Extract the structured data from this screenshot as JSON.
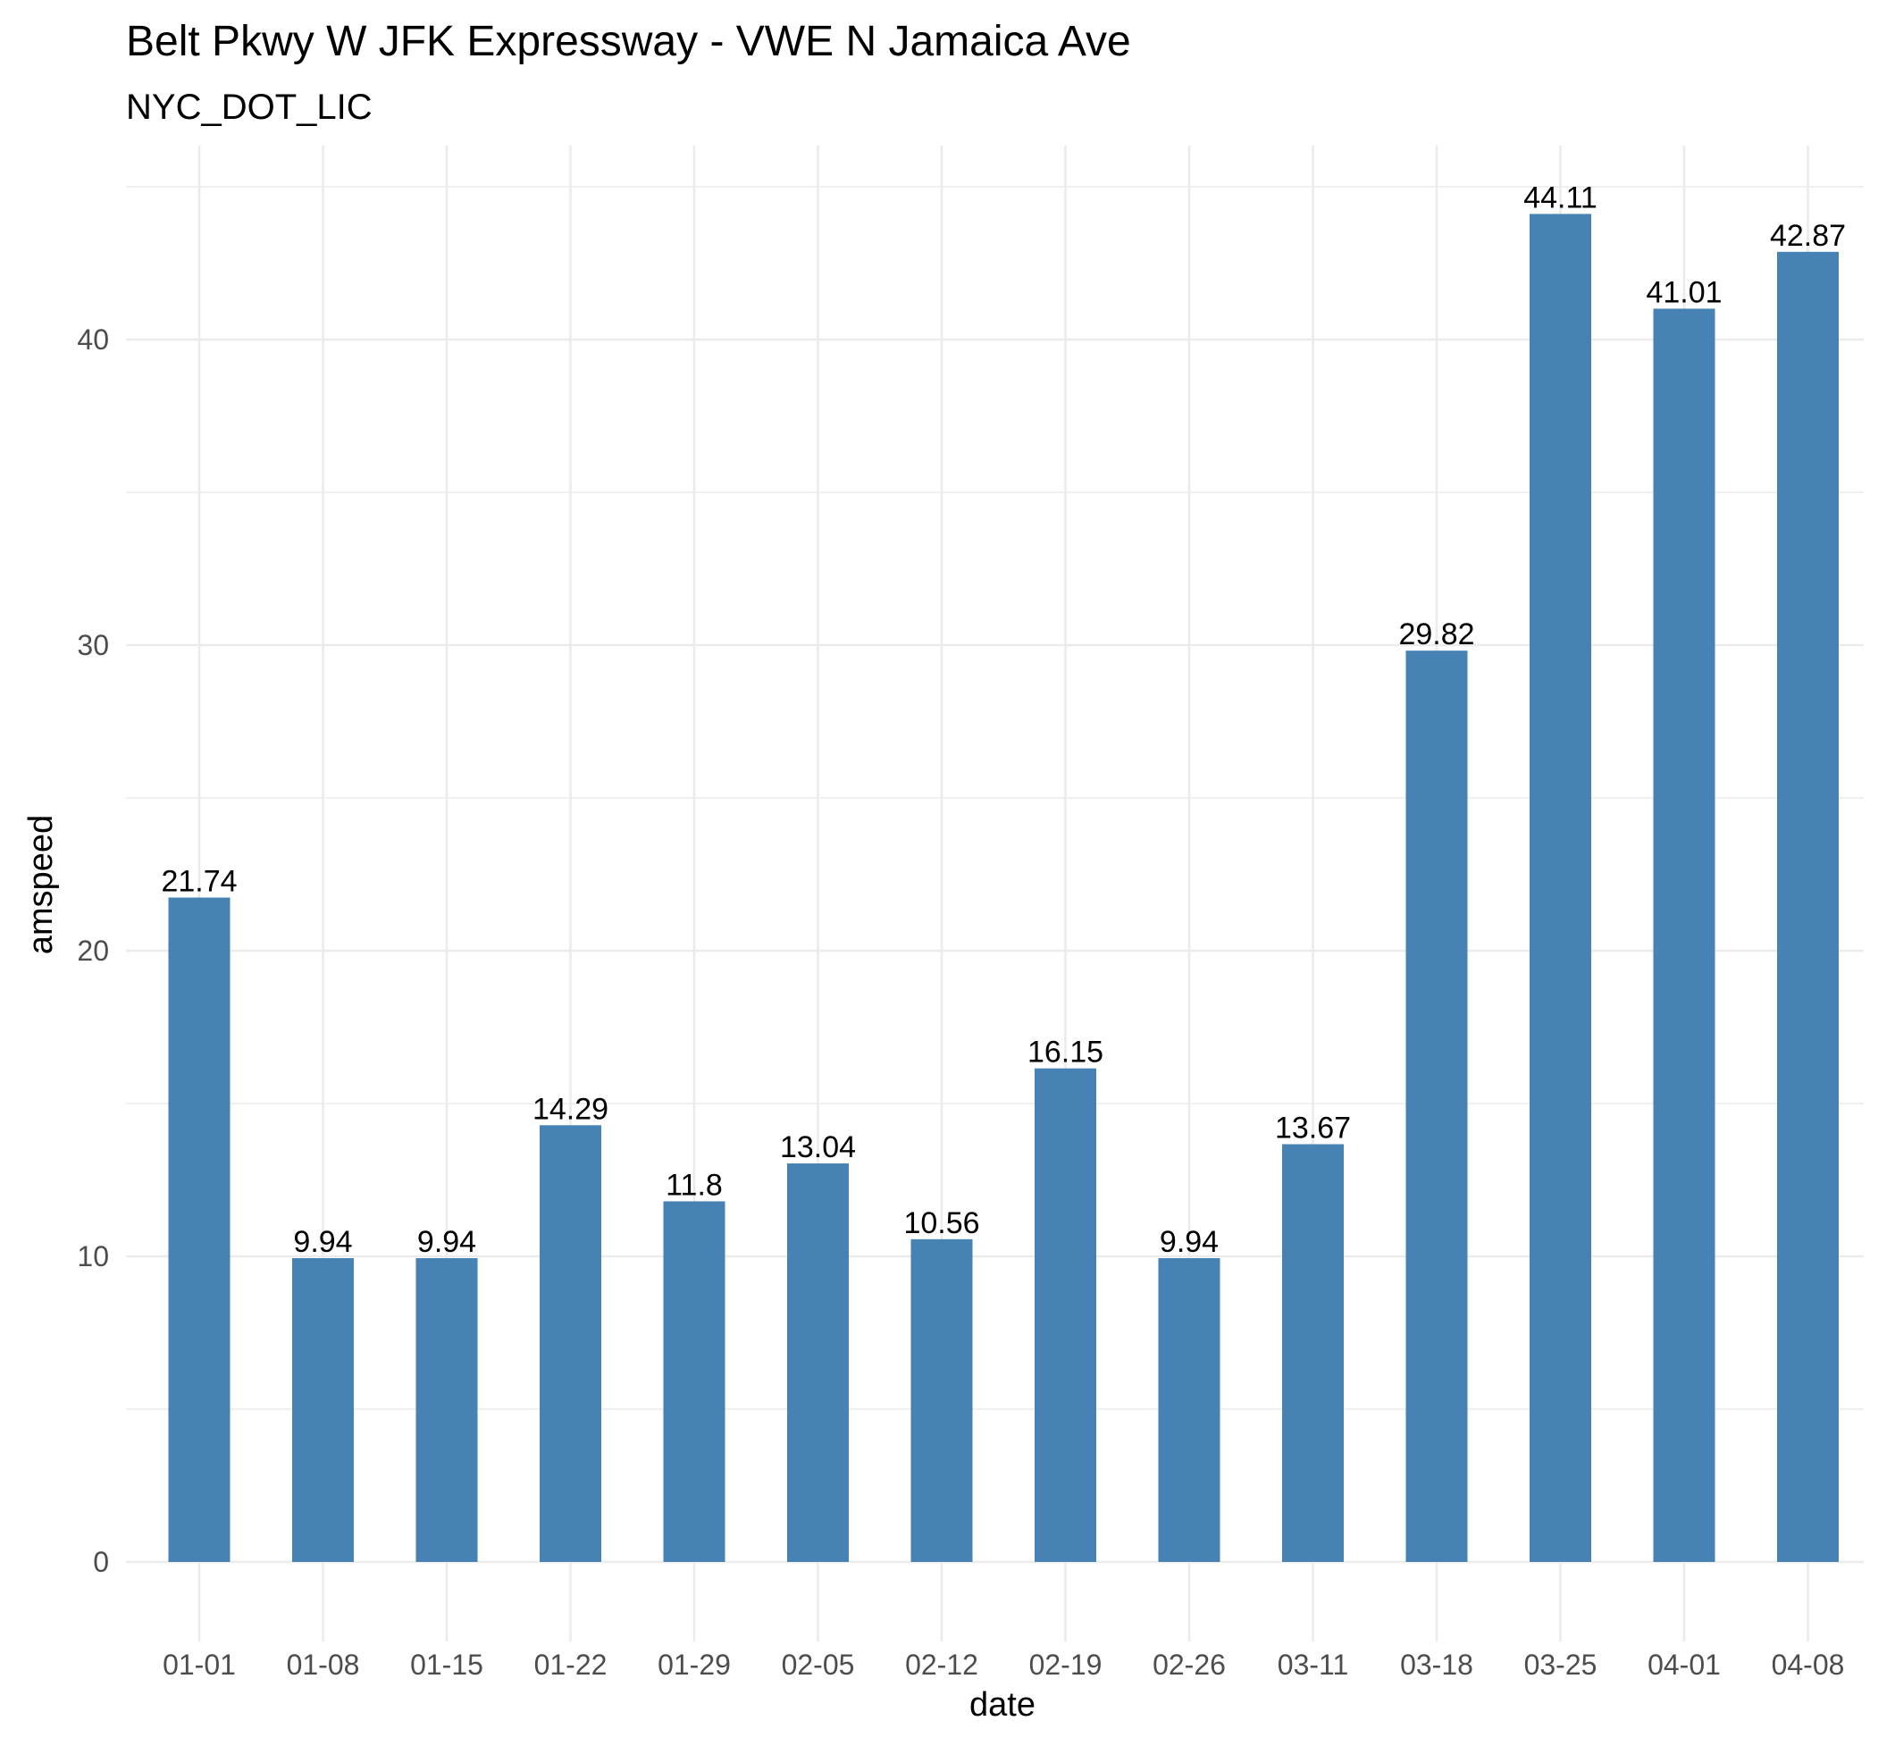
{
  "chart_data": {
    "type": "bar",
    "title": "Belt Pkwy W JFK Expressway - VWE N Jamaica Ave",
    "subtitle": "NYC_DOT_LIC",
    "xlabel": "date",
    "ylabel": "amspeed",
    "categories": [
      "01-01",
      "01-08",
      "01-15",
      "01-22",
      "01-29",
      "02-05",
      "02-12",
      "02-19",
      "02-26",
      "03-11",
      "03-18",
      "03-25",
      "04-01",
      "04-08"
    ],
    "values": [
      21.74,
      9.94,
      9.94,
      14.29,
      11.8,
      13.04,
      10.56,
      16.15,
      9.94,
      13.67,
      29.82,
      44.11,
      41.01,
      42.87
    ],
    "value_labels": [
      "21.74",
      "9.94",
      "9.94",
      "14.29",
      "11.8",
      "13.04",
      "10.56",
      "16.15",
      "9.94",
      "13.67",
      "29.82",
      "44.11",
      "41.01",
      "42.87"
    ],
    "yticks": [
      0,
      10,
      20,
      30,
      40
    ],
    "ytick_labels": [
      "0",
      "10",
      "20",
      "30",
      "40"
    ],
    "ylim": [
      0,
      46.3
    ],
    "grid": true,
    "legend": "none",
    "bar_color": "#4682B4"
  }
}
